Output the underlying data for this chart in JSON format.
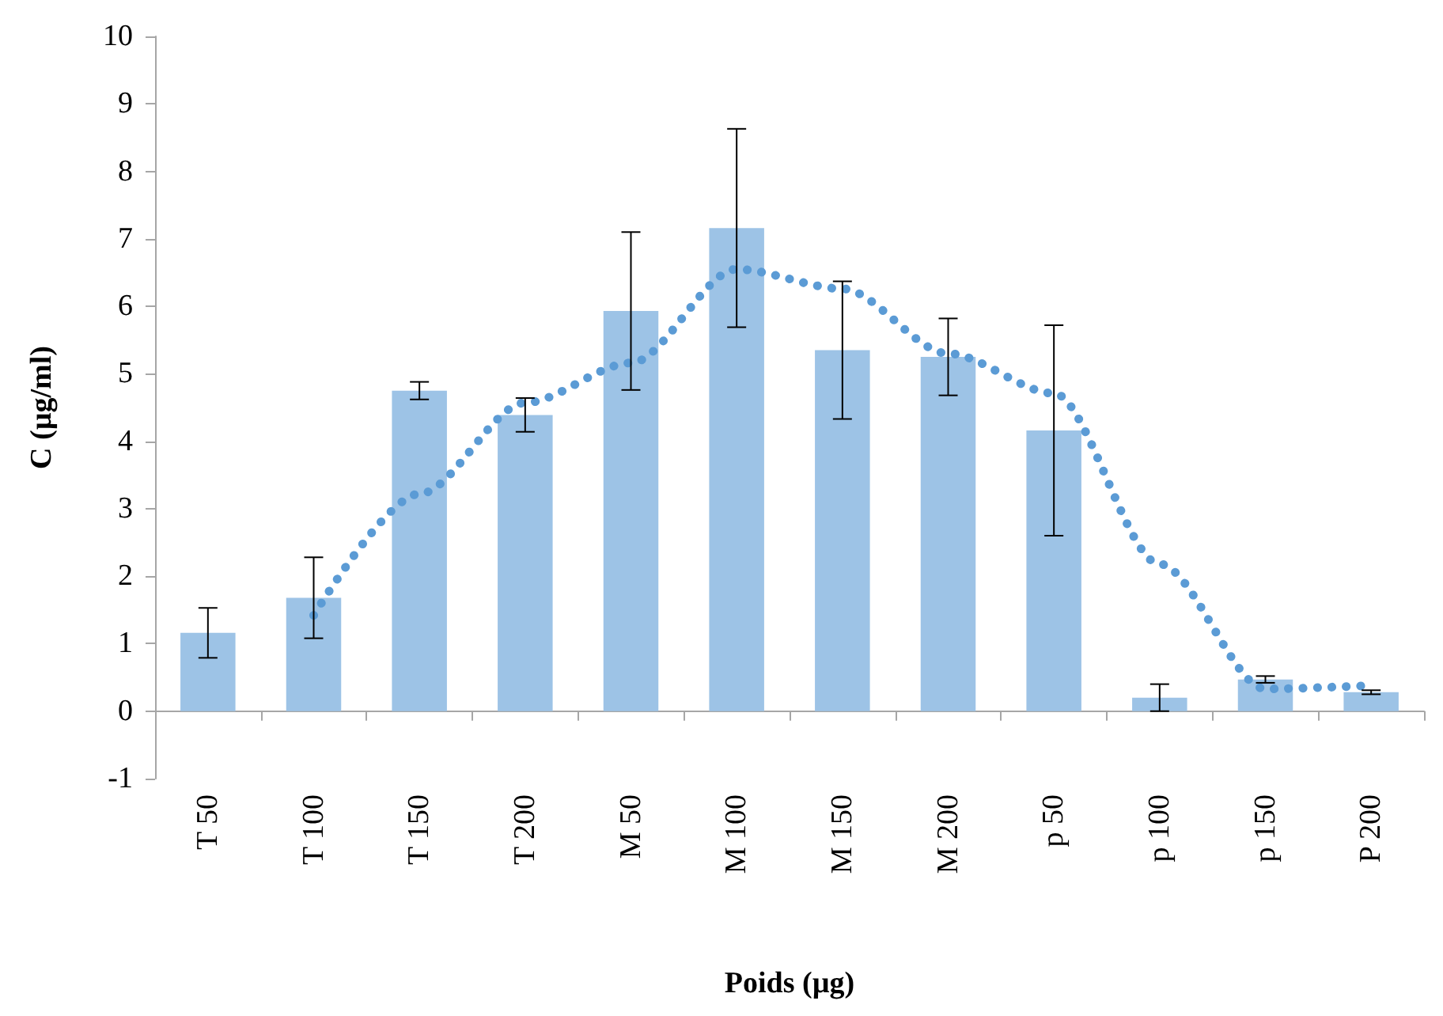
{
  "chart_data": {
    "type": "bar",
    "xlabel": "Poids (µg)",
    "ylabel": "C (µg/ml)",
    "categories": [
      "T 50",
      "T 100",
      "T 150",
      "T 200",
      "M 50",
      "M 100",
      "M 150",
      "M 200",
      "p 50",
      "p 100",
      "p 150",
      "P 200"
    ],
    "series": [
      {
        "color": "#9dc3e6",
        "values": [
          1.16,
          1.68,
          4.75,
          4.39,
          5.93,
          7.16,
          5.35,
          5.25,
          4.16,
          0.2,
          0.47,
          0.28
        ],
        "errors": [
          0.37,
          0.6,
          0.13,
          0.25,
          1.17,
          1.47,
          1.02,
          0.57,
          1.56,
          0.2,
          0.05,
          0.03
        ]
      },
      {
        "type": "line",
        "color": "#5b9bd5",
        "line_style": "dotted",
        "marker": "none",
        "values": [
          null,
          1.42,
          3.22,
          4.57,
          5.16,
          6.55,
          6.26,
          5.3,
          4.71,
          2.18,
          0.33,
          0.38
        ]
      }
    ],
    "ylim": [
      -1,
      10
    ],
    "yticks": [
      -1,
      0,
      1,
      2,
      3,
      4,
      5,
      6,
      7,
      8,
      9,
      10
    ]
  }
}
